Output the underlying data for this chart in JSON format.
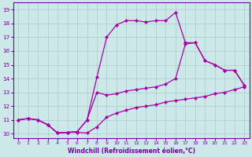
{
  "xlabel": "Windchill (Refroidissement éolien,°C)",
  "bg_color": "#cce8e8",
  "line_color": "#aa00aa",
  "xlim": [
    -0.5,
    23.5
  ],
  "ylim": [
    9.7,
    19.5
  ],
  "xticks": [
    0,
    1,
    2,
    3,
    4,
    5,
    6,
    7,
    8,
    9,
    10,
    11,
    12,
    13,
    14,
    15,
    16,
    17,
    18,
    19,
    20,
    21,
    22,
    23
  ],
  "yticks": [
    10,
    11,
    12,
    13,
    14,
    15,
    16,
    17,
    18,
    19
  ],
  "grid_color": "#aacccc",
  "font_color": "#7700aa",
  "tick_color": "#7700aa",
  "curve1_x": [
    0,
    1,
    2,
    3,
    4,
    5,
    6,
    7,
    8,
    9,
    10,
    11,
    12,
    13,
    14,
    15,
    16,
    17,
    18,
    19,
    20,
    21,
    22,
    23
  ],
  "curve1_y": [
    11.0,
    11.1,
    11.0,
    10.65,
    10.05,
    10.1,
    10.1,
    10.05,
    10.5,
    11.2,
    11.5,
    11.7,
    11.9,
    12.0,
    12.1,
    12.3,
    12.4,
    12.5,
    12.6,
    12.7,
    12.9,
    13.0,
    13.2,
    13.4
  ],
  "curve2_x": [
    0,
    1,
    2,
    3,
    4,
    5,
    6,
    7,
    8,
    9,
    10,
    11,
    12,
    13,
    14,
    15,
    16,
    17,
    18,
    19,
    20,
    21,
    22,
    23
  ],
  "curve2_y": [
    11.0,
    11.1,
    11.0,
    10.65,
    10.05,
    10.1,
    10.15,
    11.0,
    13.0,
    12.8,
    12.9,
    13.1,
    13.2,
    13.3,
    13.4,
    13.6,
    14.0,
    16.5,
    16.6,
    15.3,
    15.0,
    14.6,
    14.6,
    13.5
  ],
  "curve3_x": [
    0,
    1,
    2,
    3,
    4,
    5,
    6,
    7,
    8,
    9,
    10,
    11,
    12,
    13,
    14,
    15,
    16,
    17,
    18,
    19,
    20,
    21,
    22,
    23
  ],
  "curve3_y": [
    11.0,
    11.1,
    11.0,
    10.65,
    10.05,
    10.1,
    10.15,
    11.0,
    14.1,
    17.0,
    17.9,
    18.2,
    18.2,
    18.1,
    18.2,
    18.2,
    18.8,
    16.6,
    16.6,
    15.3,
    15.0,
    14.6,
    14.6,
    13.5
  ]
}
